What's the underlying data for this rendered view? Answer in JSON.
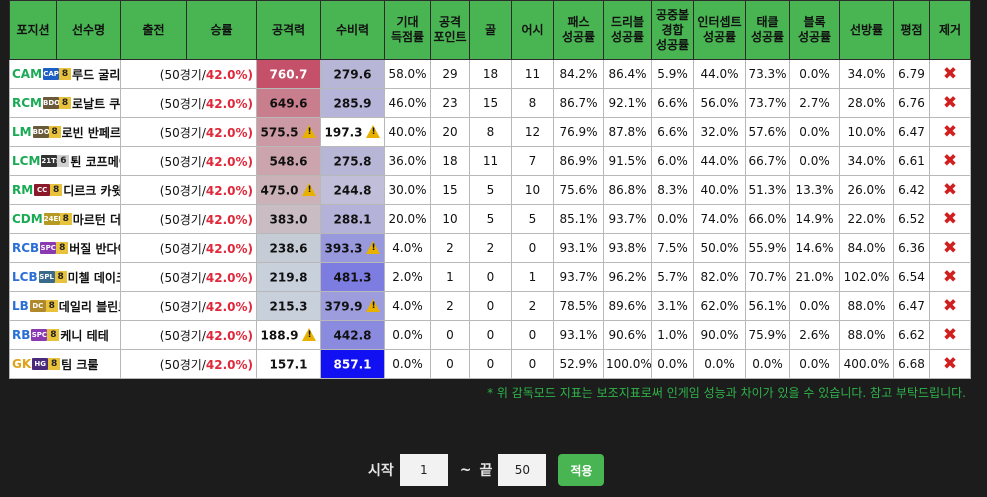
{
  "headers": {
    "position": "포지션",
    "player": "선수명",
    "appearances": "출전",
    "win_rate": "승률",
    "attack": "공격력",
    "defense": "수비력",
    "xg": [
      "기대",
      "득점률"
    ],
    "attack_points": [
      "공격",
      "포인트"
    ],
    "goals": "골",
    "assists": "어시",
    "pass": [
      "패스",
      "성공률"
    ],
    "dribble": [
      "드리블",
      "성공률"
    ],
    "aerial": [
      "공중볼",
      "경합",
      "성공률"
    ],
    "intercept": [
      "인터셉트",
      "성공률"
    ],
    "tackle": [
      "태클",
      "성공률"
    ],
    "block": [
      "블록",
      "성공률"
    ],
    "save": "선방률",
    "rating": "평점",
    "remove": "제거"
  },
  "players": [
    {
      "pos": "CAM",
      "pos_color": "#1aaa55",
      "badge": "CAP",
      "badge_color": "#1d5fc4",
      "grade": "8",
      "name": "루드 굴리트",
      "games": "(50경기/",
      "rate": "42.0%)",
      "atk": "760.7",
      "atk_bg": "#c4506a",
      "atk_fg": "#ffffff",
      "atk_warn": false,
      "def": "279.6",
      "def_bg": "#b8b6d6",
      "def_fg": "#111111",
      "def_warn": false,
      "xg": "58.0%",
      "ap": "29",
      "goals": "18",
      "assists": "11",
      "pass": "84.2%",
      "dribble": "86.4%",
      "aerial": "5.9%",
      "intercept": "44.0%",
      "tackle": "73.3%",
      "block": "0.0%",
      "save": "34.0%",
      "rating": "6.79"
    },
    {
      "pos": "RCM",
      "pos_color": "#1aaa55",
      "badge": "BDO",
      "badge_color": "#6a5a3a",
      "grade": "8",
      "name": "로날트 쿠만",
      "games": "(50경기/",
      "rate": "42.0%)",
      "atk": "649.6",
      "atk_bg": "#c87e8d",
      "atk_fg": "#111111",
      "atk_warn": false,
      "def": "285.9",
      "def_bg": "#b6b4d8",
      "def_fg": "#111111",
      "def_warn": false,
      "xg": "46.0%",
      "ap": "23",
      "goals": "15",
      "assists": "8",
      "pass": "86.7%",
      "dribble": "92.1%",
      "aerial": "6.6%",
      "intercept": "56.0%",
      "tackle": "73.7%",
      "block": "2.7%",
      "save": "28.0%",
      "rating": "6.76"
    },
    {
      "pos": "LM",
      "pos_color": "#1aaa55",
      "badge": "BDO",
      "badge_color": "#6a5a3a",
      "grade": "8",
      "name": "로빈 반페르시",
      "games": "(50경기/",
      "rate": "42.0%)",
      "atk": "575.5",
      "atk_bg": "#cc9aa4",
      "atk_fg": "#111111",
      "atk_warn": true,
      "def": "197.3",
      "def_bg": "#ffffff",
      "def_fg": "#111111",
      "def_warn": true,
      "xg": "40.0%",
      "ap": "20",
      "goals": "8",
      "assists": "12",
      "pass": "76.9%",
      "dribble": "87.8%",
      "aerial": "6.6%",
      "intercept": "32.0%",
      "tackle": "57.6%",
      "block": "0.0%",
      "save": "10.0%",
      "rating": "6.47"
    },
    {
      "pos": "LCM",
      "pos_color": "#1aaa55",
      "badge": "21TS",
      "badge_color": "#333333",
      "grade": "6",
      "grade_plain": true,
      "name": "퇸 코프메이너르스",
      "games": "(50경기/",
      "rate": "42.0%)",
      "atk": "548.6",
      "atk_bg": "#cca4ad",
      "atk_fg": "#111111",
      "atk_warn": false,
      "def": "275.8",
      "def_bg": "#b8b6d6",
      "def_fg": "#111111",
      "def_warn": false,
      "xg": "36.0%",
      "ap": "18",
      "goals": "11",
      "assists": "7",
      "pass": "86.9%",
      "dribble": "91.5%",
      "aerial": "6.0%",
      "intercept": "44.0%",
      "tackle": "66.7%",
      "block": "0.0%",
      "save": "34.0%",
      "rating": "6.61"
    },
    {
      "pos": "RM",
      "pos_color": "#1aaa55",
      "badge": "CC",
      "badge_color": "#8a1a2a",
      "grade": "8",
      "name": "디르크 카윗트",
      "games": "(50경기/",
      "rate": "42.0%)",
      "atk": "475.0",
      "atk_bg": "#cab2b8",
      "atk_fg": "#111111",
      "atk_warn": true,
      "def": "244.8",
      "def_bg": "#c0bed8",
      "def_fg": "#111111",
      "def_warn": false,
      "xg": "30.0%",
      "ap": "15",
      "goals": "5",
      "assists": "10",
      "pass": "75.6%",
      "dribble": "86.8%",
      "aerial": "8.3%",
      "intercept": "40.0%",
      "tackle": "51.3%",
      "block": "13.3%",
      "save": "26.0%",
      "rating": "6.42"
    },
    {
      "pos": "CDM",
      "pos_color": "#1aaa55",
      "badge": "24EP",
      "badge_color": "#b59a24",
      "grade": "8",
      "name": "마르턴 더룬",
      "games": "(50경기/",
      "rate": "42.0%)",
      "atk": "383.0",
      "atk_bg": "#c9bcc2",
      "atk_fg": "#111111",
      "atk_warn": false,
      "def": "288.1",
      "def_bg": "#b4b2d8",
      "def_fg": "#111111",
      "def_warn": false,
      "xg": "20.0%",
      "ap": "10",
      "goals": "5",
      "assists": "5",
      "pass": "85.1%",
      "dribble": "93.7%",
      "aerial": "0.0%",
      "intercept": "74.0%",
      "tackle": "66.0%",
      "block": "14.9%",
      "save": "22.0%",
      "rating": "6.52"
    },
    {
      "pos": "RCB",
      "pos_color": "#2a6fd6",
      "badge": "SPC",
      "badge_color": "#8a3ab0",
      "grade": "8",
      "name": "버질 반다이크",
      "games": "(50경기/",
      "rate": "42.0%)",
      "atk": "238.6",
      "atk_bg": "#c6ccd6",
      "atk_fg": "#111111",
      "atk_warn": false,
      "def": "393.3",
      "def_bg": "#9898dc",
      "def_fg": "#111111",
      "def_warn": true,
      "xg": "4.0%",
      "ap": "2",
      "goals": "2",
      "assists": "0",
      "pass": "93.1%",
      "dribble": "93.8%",
      "aerial": "7.5%",
      "intercept": "50.0%",
      "tackle": "55.9%",
      "block": "14.6%",
      "save": "84.0%",
      "rating": "6.36"
    },
    {
      "pos": "LCB",
      "pos_color": "#2a6fd6",
      "badge": "SPL",
      "badge_color": "#3a6a8a",
      "grade": "8",
      "name": "미첼 데이크스",
      "games": "(50경기/",
      "rate": "42.0%)",
      "atk": "219.8",
      "atk_bg": "#c8d0dc",
      "atk_fg": "#111111",
      "atk_warn": false,
      "def": "481.3",
      "def_bg": "#7d7ce0",
      "def_fg": "#111111",
      "def_warn": false,
      "xg": "2.0%",
      "ap": "1",
      "goals": "0",
      "assists": "1",
      "pass": "93.7%",
      "dribble": "96.2%",
      "aerial": "5.7%",
      "intercept": "82.0%",
      "tackle": "70.7%",
      "block": "21.0%",
      "save": "102.0%",
      "rating": "6.54"
    },
    {
      "pos": "LB",
      "pos_color": "#2a6fd6",
      "badge": "DC",
      "badge_color": "#b0892a",
      "grade": "8",
      "name": "데일리 블린트",
      "games": "(50경기/",
      "rate": "42.0%)",
      "atk": "215.3",
      "atk_bg": "#c8d0dc",
      "atk_fg": "#111111",
      "atk_warn": false,
      "def": "379.9",
      "def_bg": "#9d9cdc",
      "def_fg": "#111111",
      "def_warn": true,
      "xg": "4.0%",
      "ap": "2",
      "goals": "0",
      "assists": "2",
      "pass": "78.5%",
      "dribble": "89.6%",
      "aerial": "3.1%",
      "intercept": "62.0%",
      "tackle": "56.1%",
      "block": "0.0%",
      "save": "88.0%",
      "rating": "6.47"
    },
    {
      "pos": "RB",
      "pos_color": "#2a6fd6",
      "badge": "SPC",
      "badge_color": "#8a3ab0",
      "grade": "8",
      "name": "케니 테테",
      "games": "(50경기/",
      "rate": "42.0%)",
      "atk": "188.9",
      "atk_bg": "#ffffff",
      "atk_fg": "#111111",
      "atk_warn": true,
      "def": "442.8",
      "def_bg": "#8a8ade",
      "def_fg": "#111111",
      "def_warn": false,
      "xg": "0.0%",
      "ap": "0",
      "goals": "0",
      "assists": "0",
      "pass": "93.1%",
      "dribble": "90.6%",
      "aerial": "1.0%",
      "intercept": "90.0%",
      "tackle": "75.9%",
      "block": "2.6%",
      "save": "88.0%",
      "rating": "6.62"
    },
    {
      "pos": "GK",
      "pos_color": "#e0a21a",
      "badge": "HG",
      "badge_color": "#4a2a7a",
      "grade": "8",
      "name": "팀 크룰",
      "games": "(50경기/",
      "rate": "42.0%)",
      "atk": "157.1",
      "atk_bg": "#ffffff",
      "atk_fg": "#111111",
      "atk_warn": false,
      "def": "857.1",
      "def_bg": "#1010f2",
      "def_fg": "#ffffff",
      "def_warn": false,
      "xg": "0.0%",
      "ap": "0",
      "goals": "0",
      "assists": "0",
      "pass": "52.9%",
      "dribble": "100.0%",
      "aerial": "0.0%",
      "intercept": "0.0%",
      "tackle": "0.0%",
      "block": "0.0%",
      "save": "400.0%",
      "rating": "6.68"
    }
  ],
  "remove_icon": "✖",
  "notice": "* 위 감독모드 지표는 보조지표로써 인게임 성능과 차이가 있을 수 있습니다. 참고 부탁드립니다.",
  "range": {
    "start_label": "시작",
    "start_value": "1",
    "separator": "~",
    "end_label": "끝",
    "end_value": "50",
    "apply_label": "적용"
  }
}
